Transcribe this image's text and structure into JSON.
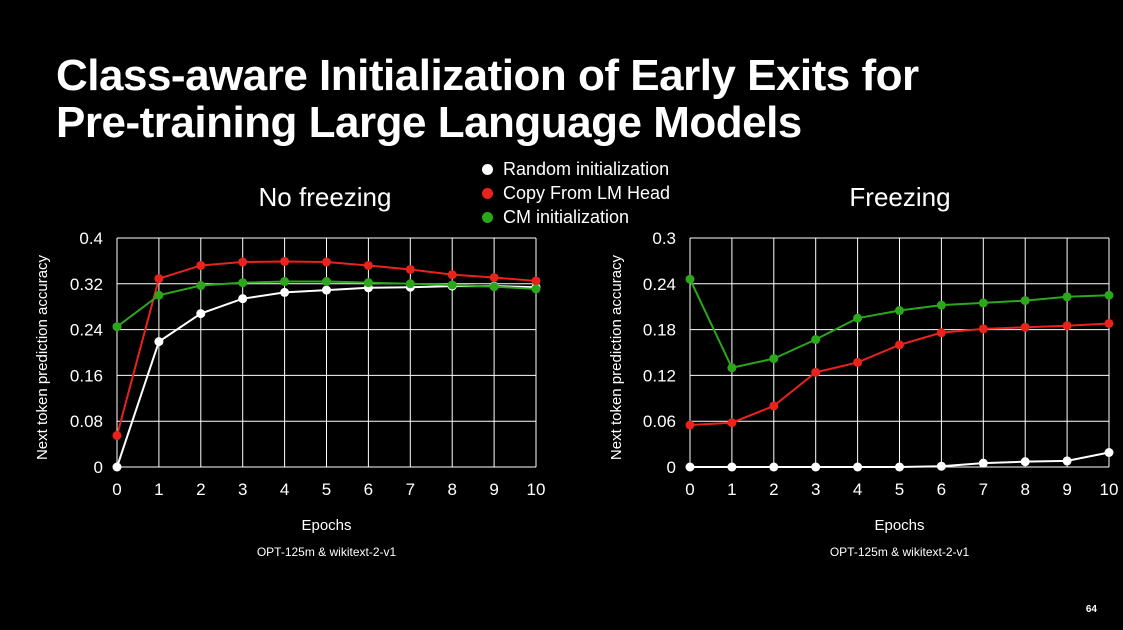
{
  "slide": {
    "title_line1": "Class-aware Initialization of Early Exits for",
    "title_line2": "Pre-training Large Language Models",
    "page_number": "64"
  },
  "legend": [
    {
      "label": "Random initialization",
      "color": "#ffffff"
    },
    {
      "label": "Copy From LM Head",
      "color": "#e8231c"
    },
    {
      "label": "CM initialization",
      "color": "#2ca71c"
    }
  ],
  "chart_data": [
    {
      "type": "line",
      "title": "No freezing",
      "xlabel": "Epochs",
      "ylabel": "Next token prediction accuracy",
      "caption": "OPT-125m & wikitext-2-v1",
      "x": [
        0,
        1,
        2,
        3,
        4,
        5,
        6,
        7,
        8,
        9,
        10
      ],
      "xlim": [
        0,
        10
      ],
      "ylim": [
        0,
        0.4
      ],
      "yticks": [
        0,
        0.08,
        0.16,
        0.24,
        0.32,
        0.4
      ],
      "ytick_labels": [
        "0",
        "0.08",
        "0.16",
        "0.24",
        "0.32",
        "0.4"
      ],
      "grid": true,
      "series": [
        {
          "name": "Random initialization",
          "color": "#ffffff",
          "values": [
            0.0,
            0.219,
            0.268,
            0.294,
            0.305,
            0.309,
            0.313,
            0.314,
            0.316,
            0.316,
            0.314
          ]
        },
        {
          "name": "Copy From LM Head",
          "color": "#e8231c",
          "values": [
            0.055,
            0.329,
            0.352,
            0.358,
            0.359,
            0.358,
            0.352,
            0.345,
            0.336,
            0.331,
            0.325
          ]
        },
        {
          "name": "CM initialization",
          "color": "#2ca71c",
          "values": [
            0.245,
            0.3,
            0.317,
            0.322,
            0.324,
            0.324,
            0.322,
            0.32,
            0.318,
            0.315,
            0.311
          ]
        }
      ]
    },
    {
      "type": "line",
      "title": "Freezing",
      "xlabel": "Epochs",
      "ylabel": "Next token prediction accuracy",
      "caption": "OPT-125m & wikitext-2-v1",
      "x": [
        0,
        1,
        2,
        3,
        4,
        5,
        6,
        7,
        8,
        9,
        10
      ],
      "xlim": [
        0,
        10
      ],
      "ylim": [
        0,
        0.3
      ],
      "yticks": [
        0,
        0.06,
        0.12,
        0.18,
        0.24,
        0.3
      ],
      "ytick_labels": [
        "0",
        "0.06",
        "0.12",
        "0.18",
        "0.24",
        "0.3"
      ],
      "grid": true,
      "series": [
        {
          "name": "Random initialization",
          "color": "#ffffff",
          "values": [
            0.0,
            0.0,
            0.0,
            0.0,
            0.0,
            0.0,
            0.001,
            0.005,
            0.007,
            0.008,
            0.019
          ]
        },
        {
          "name": "Copy From LM Head",
          "color": "#e8231c",
          "values": [
            0.055,
            0.058,
            0.08,
            0.124,
            0.137,
            0.16,
            0.176,
            0.181,
            0.183,
            0.185,
            0.188
          ]
        },
        {
          "name": "CM initialization",
          "color": "#2ca71c",
          "values": [
            0.246,
            0.13,
            0.142,
            0.167,
            0.195,
            0.205,
            0.212,
            0.215,
            0.218,
            0.223,
            0.225
          ]
        }
      ]
    }
  ]
}
